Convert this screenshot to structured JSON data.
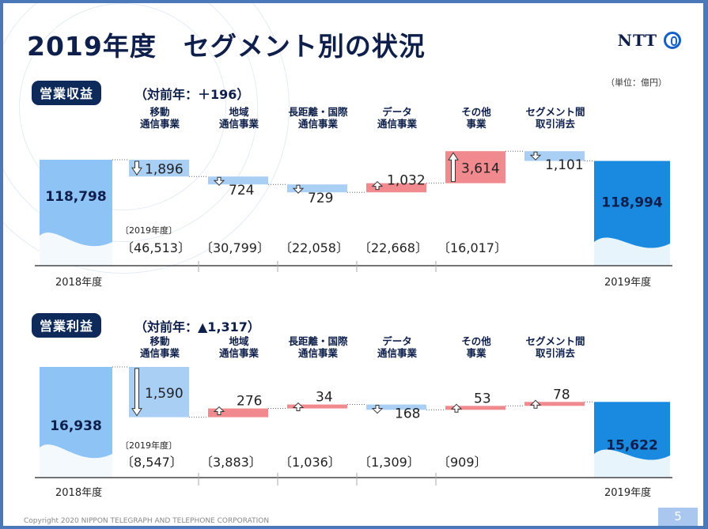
{
  "title": "2019年度　セグメント別の状況",
  "logo_text": "NTT",
  "unit_note": "（単位：億円）",
  "footer": "Copyright 2020 NIPPON TELEGRAPH AND TELEPHONE CORPORATION",
  "page_number": "5",
  "colors": {
    "navy": "#0d2a5a",
    "blue_bar": "#8ec3f5",
    "blue_end": "#1a8ae0",
    "decrease": "#a9cff5",
    "increase": "#f08a8e"
  },
  "categories": [
    "移動\n通信事業",
    "地域\n通信事業",
    "長距離・国際\n通信事業",
    "データ\n通信事業",
    "その他\n事業",
    "セグメント間\n取引消去"
  ],
  "chart_data": [
    {
      "type": "waterfall",
      "title": "営業収益",
      "delta_text": "（対前年：＋196）",
      "start": {
        "label": "2018年度",
        "value": 118798,
        "display": "118,798"
      },
      "end": {
        "label": "2019年度",
        "value": 118994,
        "display": "118,994"
      },
      "changes": [
        {
          "value": 1896,
          "display": "1,896",
          "direction": "down"
        },
        {
          "value": 724,
          "display": "724",
          "direction": "down"
        },
        {
          "value": 729,
          "display": "729",
          "direction": "down"
        },
        {
          "value": 1032,
          "display": "1,032",
          "direction": "up"
        },
        {
          "value": 3614,
          "display": "3,614",
          "direction": "up"
        },
        {
          "value": 1101,
          "display": "1,101",
          "direction": "down"
        }
      ],
      "fy_label": "〔2019年度〕",
      "segment_totals": [
        "〔46,513〕",
        "〔30,799〕",
        "〔22,058〕",
        "〔22,668〕",
        "〔16,017〕"
      ]
    },
    {
      "type": "waterfall",
      "title": "営業利益",
      "delta_text": "（対前年：▲1,317）",
      "start": {
        "label": "2018年度",
        "value": 16938,
        "display": "16,938"
      },
      "end": {
        "label": "2019年度",
        "value": 15622,
        "display": "15,622"
      },
      "changes": [
        {
          "value": 1590,
          "display": "1,590",
          "direction": "down"
        },
        {
          "value": 276,
          "display": "276",
          "direction": "up"
        },
        {
          "value": 34,
          "display": "34",
          "direction": "up"
        },
        {
          "value": 168,
          "display": "168",
          "direction": "down"
        },
        {
          "value": 53,
          "display": "53",
          "direction": "up"
        },
        {
          "value": 78,
          "display": "78",
          "direction": "up"
        }
      ],
      "fy_label": "〔2019年度〕",
      "segment_totals": [
        "〔8,547〕",
        "〔3,883〕",
        "〔1,036〕",
        "〔1,309〕",
        "〔909〕"
      ]
    }
  ]
}
